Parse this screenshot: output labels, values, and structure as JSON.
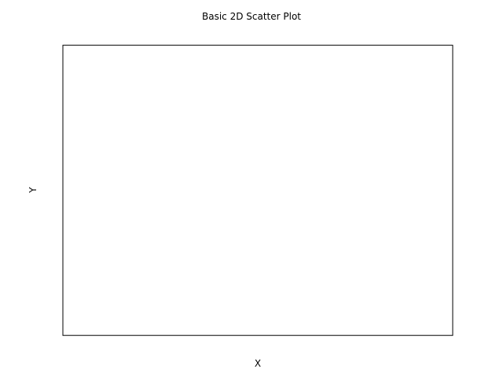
{
  "chart_data": {
    "type": "scatter",
    "title": "Basic 2D Scatter Plot",
    "xlabel": "X",
    "ylabel": "Y",
    "series": [
      {
        "x": [],
        "y": []
      }
    ],
    "grid": false,
    "x_ticks_visible": false,
    "y_ticks_visible": false,
    "colors": {
      "background": "#ffffff",
      "axes_frame": "#000000",
      "text": "#000000"
    }
  }
}
